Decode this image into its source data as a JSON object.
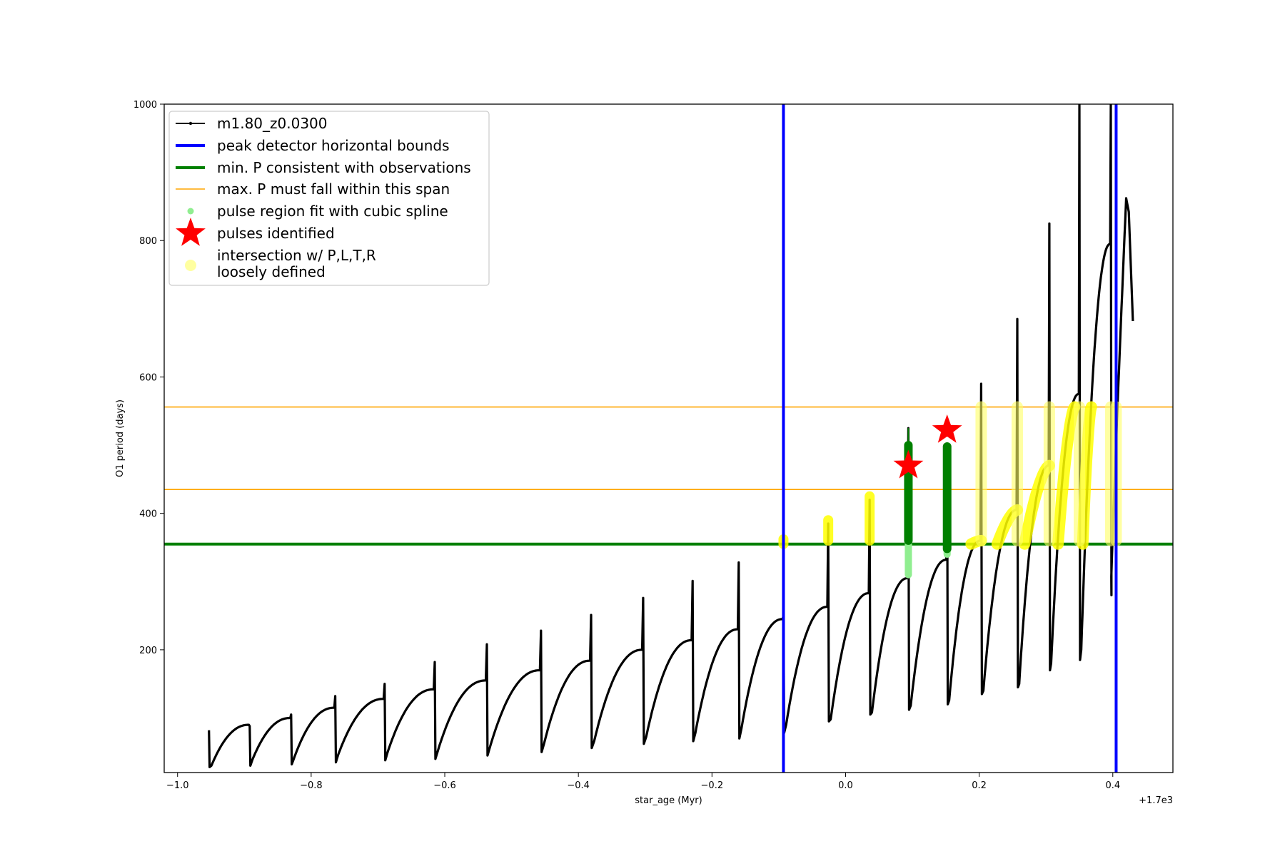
{
  "chart_data": {
    "type": "line",
    "xlabel": "star_age (Myr)",
    "ylabel": "O1 period (days)",
    "x_offset_label": "+1.7e3",
    "xlim": [
      -1.02,
      0.49
    ],
    "ylim": [
      20,
      1000
    ],
    "x_ticks": [
      -1.0,
      -0.8,
      -0.6,
      -0.4,
      -0.2,
      0.0,
      0.2,
      0.4
    ],
    "x_tick_labels": [
      "−1.0",
      "−0.8",
      "−0.6",
      "−0.4",
      "−0.2",
      "0.0",
      "0.2",
      "0.4"
    ],
    "y_ticks": [
      200,
      400,
      600,
      800,
      1000
    ],
    "y_tick_labels": [
      "200",
      "400",
      "600",
      "800",
      "1000"
    ],
    "grid": false,
    "legend_position": "upper-left",
    "legend": [
      {
        "label": "m1.80_z0.0300",
        "kind": "line-marker",
        "color": "#000000"
      },
      {
        "label": "peak detector horizontal bounds",
        "kind": "line",
        "color": "#0000ff"
      },
      {
        "label": "min. P consistent with observations",
        "kind": "line",
        "color": "#008000"
      },
      {
        "label": "max. P must fall within this span",
        "kind": "line-thin",
        "color": "#ffa500"
      },
      {
        "label": "pulse region fit with cubic spline",
        "kind": "dot",
        "color": "#90ee90"
      },
      {
        "label": "pulses identified",
        "kind": "star",
        "color": "#ff0000"
      },
      {
        "label": "intersection w/ P,L,T,R",
        "label2": "loosely defined",
        "kind": "dot-large",
        "color": "#ffffa0"
      }
    ],
    "vertical_lines": [
      {
        "name": "peak detector horizontal bounds",
        "x": -0.093,
        "color": "#0000ff"
      },
      {
        "name": "peak detector horizontal bounds",
        "x": 0.405,
        "color": "#0000ff"
      }
    ],
    "horizontal_lines": [
      {
        "name": "min. P consistent with observations",
        "y": 355,
        "color": "#008000"
      },
      {
        "name": "max. P span lower",
        "y": 435,
        "color": "#ffa500"
      },
      {
        "name": "max. P span upper",
        "y": 556,
        "color": "#ffa500"
      }
    ],
    "pulse_cycles": [
      {
        "t0": -0.953,
        "t1": -0.892,
        "base": 30,
        "peak": 90,
        "spike": 82,
        "dip": 28
      },
      {
        "t0": -0.892,
        "t1": -0.83,
        "base": 38,
        "peak": 100,
        "spike": 88,
        "dip": 30
      },
      {
        "t0": -0.83,
        "t1": -0.764,
        "base": 40,
        "peak": 115,
        "spike": 105,
        "dip": 32
      },
      {
        "t0": -0.764,
        "t1": -0.69,
        "base": 46,
        "peak": 128,
        "spike": 132,
        "dip": 35
      },
      {
        "t0": -0.69,
        "t1": -0.615,
        "base": 50,
        "peak": 142,
        "spike": 150,
        "dip": 38
      },
      {
        "t0": -0.615,
        "t1": -0.537,
        "base": 52,
        "peak": 155,
        "spike": 182,
        "dip": 40
      },
      {
        "t0": -0.537,
        "t1": -0.456,
        "base": 58,
        "peak": 170,
        "spike": 208,
        "dip": 45
      },
      {
        "t0": -0.456,
        "t1": -0.381,
        "base": 62,
        "peak": 184,
        "spike": 228,
        "dip": 50
      },
      {
        "t0": -0.381,
        "t1": -0.303,
        "base": 66,
        "peak": 200,
        "spike": 251,
        "dip": 56
      },
      {
        "t0": -0.303,
        "t1": -0.229,
        "base": 72,
        "peak": 214,
        "spike": 276,
        "dip": 62
      },
      {
        "t0": -0.229,
        "t1": -0.16,
        "base": 78,
        "peak": 230,
        "spike": 301,
        "dip": 66
      },
      {
        "t0": -0.16,
        "t1": -0.093,
        "base": 84,
        "peak": 245,
        "spike": 328,
        "dip": 70
      },
      {
        "t0": -0.093,
        "t1": -0.026,
        "base": 90,
        "peak": 263,
        "spike": 250,
        "dip": 78
      },
      {
        "t0": -0.026,
        "t1": 0.036,
        "base": 98,
        "peak": 283,
        "spike": 385,
        "dip": 95
      },
      {
        "t0": 0.036,
        "t1": 0.094,
        "base": 108,
        "peak": 305,
        "spike": 420,
        "dip": 105
      },
      {
        "t0": 0.094,
        "t1": 0.152,
        "base": 118,
        "peak": 332,
        "spike": 525,
        "dip": 112
      },
      {
        "t0": 0.152,
        "t1": 0.203,
        "base": 126,
        "peak": 360,
        "spike": 500,
        "dip": 120
      },
      {
        "t0": 0.203,
        "t1": 0.257,
        "base": 140,
        "peak": 405,
        "spike": 590,
        "dip": 135
      },
      {
        "t0": 0.257,
        "t1": 0.305,
        "base": 150,
        "peak": 470,
        "spike": 685,
        "dip": 145
      },
      {
        "t0": 0.305,
        "t1": 0.35,
        "base": 180,
        "peak": 575,
        "spike": 825,
        "dip": 170
      },
      {
        "t0": 0.35,
        "t1": 0.397,
        "base": 200,
        "peak": 795,
        "spike": 1000,
        "dip": 185
      }
    ],
    "final_segment": {
      "t0": 0.397,
      "t_peak": 0.42,
      "t_end": 0.43,
      "base": 280,
      "peak": 862,
      "end": 682
    },
    "pulses_identified": [
      {
        "x": 0.094,
        "y": 470
      },
      {
        "x": 0.152,
        "y": 522
      }
    ],
    "green_pulse_regions": [
      {
        "x": 0.094,
        "y_min": 360,
        "y_max": 500,
        "spike": 525
      },
      {
        "x": 0.152,
        "y_min": 348,
        "y_max": 498
      }
    ],
    "lightgreen_pulse_regions": [
      {
        "x": 0.094,
        "y_min": 310,
        "y_max": 480
      },
      {
        "x": 0.152,
        "y_min": 340,
        "y_max": 470
      }
    ],
    "yellow_spots": [
      {
        "x": -0.093,
        "y_min": 355,
        "y_max": 362
      },
      {
        "x": -0.026,
        "y_min": 360,
        "y_max": 390
      },
      {
        "x": 0.036,
        "y_min": 360,
        "y_max": 425
      }
    ],
    "yellow_bands": [
      {
        "x": 0.203,
        "y_min": 360,
        "y_max": 556
      },
      {
        "x": 0.257,
        "y_min": 360,
        "y_max": 556
      },
      {
        "x": 0.305,
        "y_min": 360,
        "y_max": 556
      },
      {
        "x": 0.35,
        "y_min": 360,
        "y_max": 556
      },
      {
        "x": 0.397,
        "y_min": 360,
        "y_max": 556
      },
      {
        "x": 0.405,
        "y_min": 360,
        "y_max": 556
      }
    ],
    "yellow_rises": [
      {
        "x0": 0.188,
        "x1": 0.203,
        "y0": 355,
        "y1": 360
      },
      {
        "x0": 0.227,
        "x1": 0.257,
        "y0": 355,
        "y1": 405
      },
      {
        "x0": 0.268,
        "x1": 0.305,
        "y0": 355,
        "y1": 470
      },
      {
        "x0": 0.318,
        "x1": 0.343,
        "y0": 355,
        "y1": 556
      },
      {
        "x0": 0.355,
        "x1": 0.368,
        "y0": 355,
        "y1": 556
      }
    ]
  }
}
